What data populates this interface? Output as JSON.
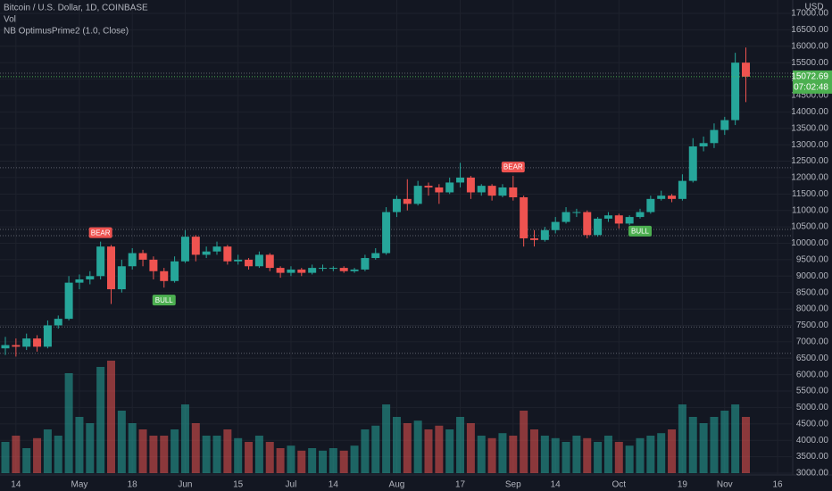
{
  "chart_data": {
    "type": "candlestick",
    "title": "Bitcoin / U.S. Dollar, 1D, COINBASE",
    "volume_title": "Vol",
    "indicator_title": "NB OptimusPrime2 (1.0, Close)",
    "currency": "USD",
    "countdown": "07:02:48",
    "categories": [
      null,
      "14",
      null,
      null,
      null,
      null,
      null,
      "May",
      null,
      null,
      null,
      null,
      "18",
      null,
      null,
      null,
      null,
      "Jun",
      null,
      null,
      null,
      null,
      "15",
      null,
      null,
      null,
      null,
      "Jul",
      null,
      null,
      null,
      "14",
      null,
      null,
      null,
      null,
      null,
      "Aug",
      null,
      null,
      null,
      null,
      null,
      "17",
      null,
      null,
      null,
      null,
      "Sep",
      null,
      null,
      null,
      "14",
      null,
      null,
      null,
      null,
      null,
      "Oct",
      null,
      null,
      null,
      null,
      null,
      "19",
      null,
      null,
      null,
      "Nov",
      null,
      null,
      null,
      null,
      "16"
    ],
    "open": [
      6800,
      6900,
      6850,
      7100,
      6850,
      7500,
      7700,
      8800,
      8900,
      9000,
      9900,
      8600,
      9300,
      9700,
      9500,
      9150,
      8850,
      9450,
      10200,
      9650,
      9750,
      9900,
      9450,
      9500,
      9300,
      9650,
      9250,
      9100,
      9200,
      9100,
      9250,
      9250,
      9250,
      9150,
      9200,
      9550,
      9700,
      10950,
      11350,
      11200,
      11750,
      11700,
      11550,
      11850,
      12000,
      11550,
      11750,
      11450,
      11700,
      11400,
      10150,
      10100,
      10400,
      10650,
      10950,
      10950,
      10250,
      10750,
      10850,
      10600,
      10800,
      10950,
      11350,
      11450,
      11350,
      11900,
      12950,
      13050,
      13450,
      13750,
      15500,
      null,
      null,
      null
    ],
    "high": [
      7150,
      7100,
      7250,
      7200,
      7650,
      7800,
      9000,
      9050,
      9150,
      10050,
      9950,
      9500,
      9850,
      9800,
      9600,
      9250,
      9600,
      10400,
      10250,
      9900,
      10050,
      9950,
      9650,
      9550,
      9750,
      9700,
      9300,
      9300,
      9250,
      9350,
      9350,
      9300,
      9300,
      9250,
      9650,
      9850,
      11100,
      11450,
      11950,
      11900,
      11850,
      11800,
      12000,
      12450,
      12050,
      11800,
      11800,
      11800,
      12050,
      11450,
      10400,
      10500,
      10800,
      11100,
      11050,
      11000,
      10800,
      10950,
      10900,
      10850,
      11050,
      11450,
      11600,
      11500,
      12100,
      13200,
      13250,
      13650,
      13850,
      15800,
      15960,
      null,
      null,
      null
    ],
    "low": [
      6600,
      6550,
      6750,
      6700,
      6800,
      7400,
      7650,
      8600,
      8750,
      8900,
      8150,
      8500,
      9200,
      9300,
      8900,
      8650,
      8800,
      9400,
      9450,
      9550,
      9650,
      9350,
      9350,
      9200,
      9250,
      9150,
      8950,
      9000,
      9000,
      9050,
      9150,
      9150,
      9100,
      9100,
      9150,
      9500,
      9650,
      10800,
      11000,
      11150,
      11450,
      11200,
      11500,
      11700,
      11350,
      11450,
      11300,
      11400,
      11300,
      9900,
      9900,
      10050,
      10300,
      10600,
      10800,
      10150,
      10200,
      10650,
      10450,
      10550,
      10750,
      10900,
      11300,
      11250,
      11300,
      11850,
      12800,
      12900,
      13300,
      13600,
      14300,
      null,
      null,
      null
    ],
    "close": [
      6900,
      6850,
      7100,
      6850,
      7500,
      7700,
      8800,
      8900,
      9000,
      9900,
      8600,
      9300,
      9700,
      9500,
      9150,
      8850,
      9450,
      10200,
      9650,
      9750,
      9900,
      9450,
      9500,
      9300,
      9650,
      9250,
      9100,
      9200,
      9100,
      9250,
      9250,
      9250,
      9150,
      9200,
      9550,
      9700,
      10950,
      11350,
      11200,
      11750,
      11700,
      11550,
      11850,
      12000,
      11550,
      11750,
      11450,
      11700,
      11400,
      10150,
      10100,
      10400,
      10650,
      10950,
      10950,
      10250,
      10750,
      10850,
      10600,
      10800,
      10950,
      11350,
      11450,
      11350,
      11900,
      12950,
      13050,
      13450,
      13750,
      15500,
      15072.69,
      null,
      null,
      null
    ],
    "volume": [
      25,
      30,
      20,
      28,
      35,
      30,
      80,
      45,
      40,
      85,
      90,
      50,
      40,
      35,
      30,
      30,
      35,
      55,
      40,
      30,
      30,
      35,
      28,
      25,
      30,
      25,
      20,
      22,
      18,
      20,
      18,
      20,
      18,
      22,
      35,
      38,
      55,
      45,
      40,
      42,
      35,
      38,
      35,
      45,
      40,
      30,
      28,
      32,
      30,
      50,
      35,
      30,
      28,
      25,
      30,
      28,
      25,
      30,
      25,
      22,
      28,
      30,
      32,
      35,
      55,
      45,
      40,
      45,
      50,
      55,
      45,
      null,
      null,
      null
    ],
    "volume_ylim": [
      0,
      100
    ],
    "signals": [
      null,
      null,
      null,
      null,
      null,
      null,
      null,
      null,
      null,
      "BEAR",
      null,
      null,
      null,
      null,
      null,
      "BULL",
      null,
      null,
      null,
      null,
      null,
      null,
      null,
      null,
      null,
      null,
      null,
      null,
      null,
      null,
      null,
      null,
      null,
      null,
      null,
      null,
      null,
      null,
      null,
      null,
      null,
      null,
      null,
      null,
      null,
      null,
      null,
      null,
      "BEAR",
      null,
      null,
      null,
      null,
      null,
      null,
      null,
      null,
      null,
      null,
      null,
      "BULL",
      null,
      null,
      null,
      null,
      null,
      null,
      null,
      null,
      null,
      null,
      null,
      null,
      null
    ],
    "levels": [
      15180,
      12300,
      10420,
      10230,
      7450,
      6650
    ],
    "ylim": [
      3000,
      17000
    ],
    "yticks": [
      {
        "value": 3000,
        "label": "3000.00"
      },
      {
        "value": 3500,
        "label": "3500.00"
      },
      {
        "value": 4000,
        "label": "4000.00"
      },
      {
        "value": 4500,
        "label": "4500.00"
      },
      {
        "value": 5000,
        "label": "5000.00"
      },
      {
        "value": 5500,
        "label": "5500.00"
      },
      {
        "value": 6000,
        "label": "6000.00"
      },
      {
        "value": 6500,
        "label": "6500.00"
      },
      {
        "value": 7000,
        "label": "7000.00"
      },
      {
        "value": 7500,
        "label": "7500.00"
      },
      {
        "value": 8000,
        "label": "8000.00"
      },
      {
        "value": 8500,
        "label": "8500.00"
      },
      {
        "value": 9000,
        "label": "9000.00"
      },
      {
        "value": 9500,
        "label": "9500.00"
      },
      {
        "value": 10000,
        "label": "10000.00"
      },
      {
        "value": 10500,
        "label": "10500.00"
      },
      {
        "value": 11000,
        "label": "11000.00"
      },
      {
        "value": 11500,
        "label": "11500.00"
      },
      {
        "value": 12000,
        "label": "12000.00"
      },
      {
        "value": 12500,
        "label": "12500.00"
      },
      {
        "value": 13000,
        "label": "13000.00"
      },
      {
        "value": 13500,
        "label": "13500.00"
      },
      {
        "value": 14000,
        "label": "14000.00"
      },
      {
        "value": 14500,
        "label": "14500.00"
      },
      {
        "value": 15000,
        "label": "15000.00"
      },
      {
        "value": 15500,
        "label": "15500.00"
      },
      {
        "value": 16000,
        "label": "16000.00"
      },
      {
        "value": 16500,
        "label": "16500.00"
      },
      {
        "value": 17000,
        "label": "17000.00"
      }
    ],
    "grid": true,
    "up_color": "#26a69a",
    "down_color": "#ef5350",
    "bull_color": "#4caf50",
    "bear_color": "#ef5350",
    "background": "#131722"
  }
}
